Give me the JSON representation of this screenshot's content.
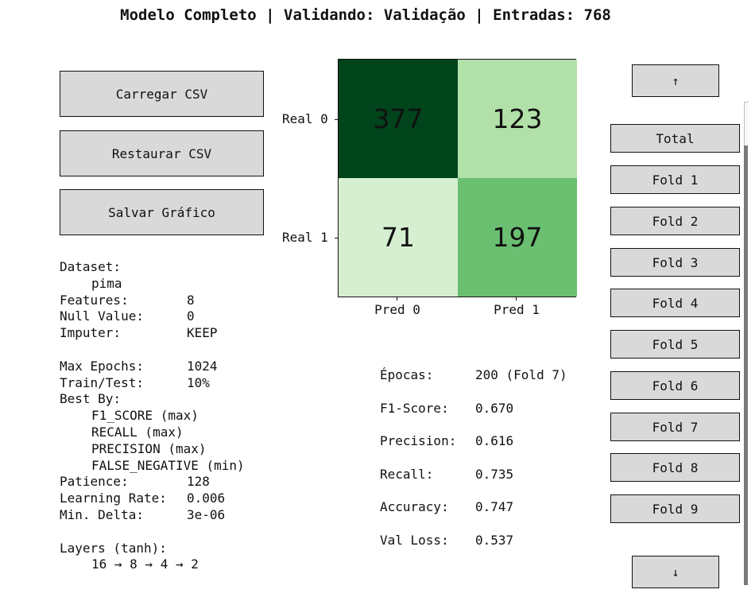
{
  "header": {
    "title": "Modelo Completo | Validando: Validação | Entradas: 768"
  },
  "actions": {
    "load_label": "Carregar CSV",
    "restore_label": "Restaurar CSV",
    "save_label": "Salvar Gráfico"
  },
  "info": {
    "dataset_label": "Dataset:",
    "dataset_value": "pima",
    "features_label": "Features:",
    "features_value": "8",
    "null_label": "Null Value:",
    "null_value": "0",
    "imputer_label": "Imputer:",
    "imputer_value": "KEEP",
    "max_epochs_label": "Max Epochs:",
    "max_epochs_value": "1024",
    "train_test_label": "Train/Test:",
    "train_test_value": "10%",
    "best_by_label": "Best By:",
    "best_by_items": [
      "F1_SCORE (max)",
      "RECALL (max)",
      "PRECISION (max)",
      "FALSE_NEGATIVE (min)"
    ],
    "patience_label": "Patience:",
    "patience_value": "128",
    "lr_label": "Learning Rate:",
    "lr_value": "0.006",
    "min_delta_label": "Min. Delta:",
    "min_delta_value": "3e-06",
    "layers_label": "Layers (tanh):",
    "layers_value": "16 → 8 → 4 → 2"
  },
  "confusion_matrix": {
    "row_labels": [
      "Real 0",
      "Real 1"
    ],
    "col_labels": [
      "Pred 0",
      "Pred 1"
    ],
    "cells": [
      {
        "value": "377",
        "color": "#00441b",
        "text_color": "#111111"
      },
      {
        "value": "123",
        "color": "#b1e0a8",
        "text_color": "#111111"
      },
      {
        "value": "71",
        "color": "#d6efd0",
        "text_color": "#111111"
      },
      {
        "value": "197",
        "color": "#6abf71",
        "text_color": "#111111"
      }
    ]
  },
  "metrics": [
    {
      "label": "Épocas:",
      "value": "200 (Fold 7)"
    },
    {
      "label": "F1-Score:",
      "value": "0.670"
    },
    {
      "label": "Precision:",
      "value": "0.616"
    },
    {
      "label": "Recall:",
      "value": "0.735"
    },
    {
      "label": "Accuracy:",
      "value": "0.747"
    },
    {
      "label": "Val Loss:",
      "value": "0.537"
    }
  ],
  "folds": {
    "up_label": "↑",
    "down_label": "↓",
    "items": [
      "Total",
      "Fold 1",
      "Fold 2",
      "Fold 3",
      "Fold 4",
      "Fold 5",
      "Fold 6",
      "Fold 7",
      "Fold 8",
      "Fold 9"
    ]
  }
}
